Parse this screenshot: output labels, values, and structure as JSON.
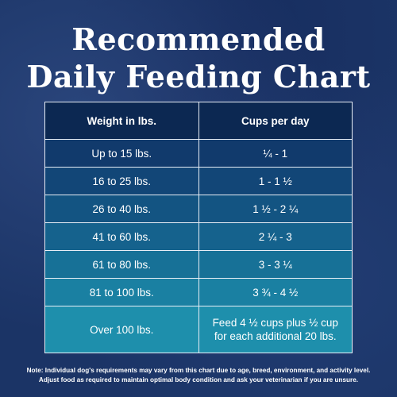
{
  "title": [
    "Recommended",
    "Daily Feeding Chart"
  ],
  "table": {
    "header": [
      "Weight in lbs.",
      "Cups per day"
    ],
    "rows": [
      [
        "Up to 15 lbs.",
        "¼ - 1"
      ],
      [
        "16 to 25 lbs.",
        "1 - 1 ½"
      ],
      [
        "26 to 40 lbs.",
        "1 ½ - 2 ¼"
      ],
      [
        "41 to 60 lbs.",
        "2 ¼ - 3"
      ],
      [
        "61 to 80 lbs.",
        "3 - 3 ¼"
      ],
      [
        "81 to 100 lbs.",
        "3 ¾ - 4 ½"
      ],
      [
        "Over 100 lbs.",
        "Feed 4 ½ cups plus ½ cup for each additional 20 lbs."
      ]
    ]
  },
  "note": [
    "Note: Individual dog's requirements may vary from this chart due to age, breed, environment, and activity level.",
    "Adjust food as required to maintain optimal body condition and ask your veterinarian if you are unsure."
  ]
}
